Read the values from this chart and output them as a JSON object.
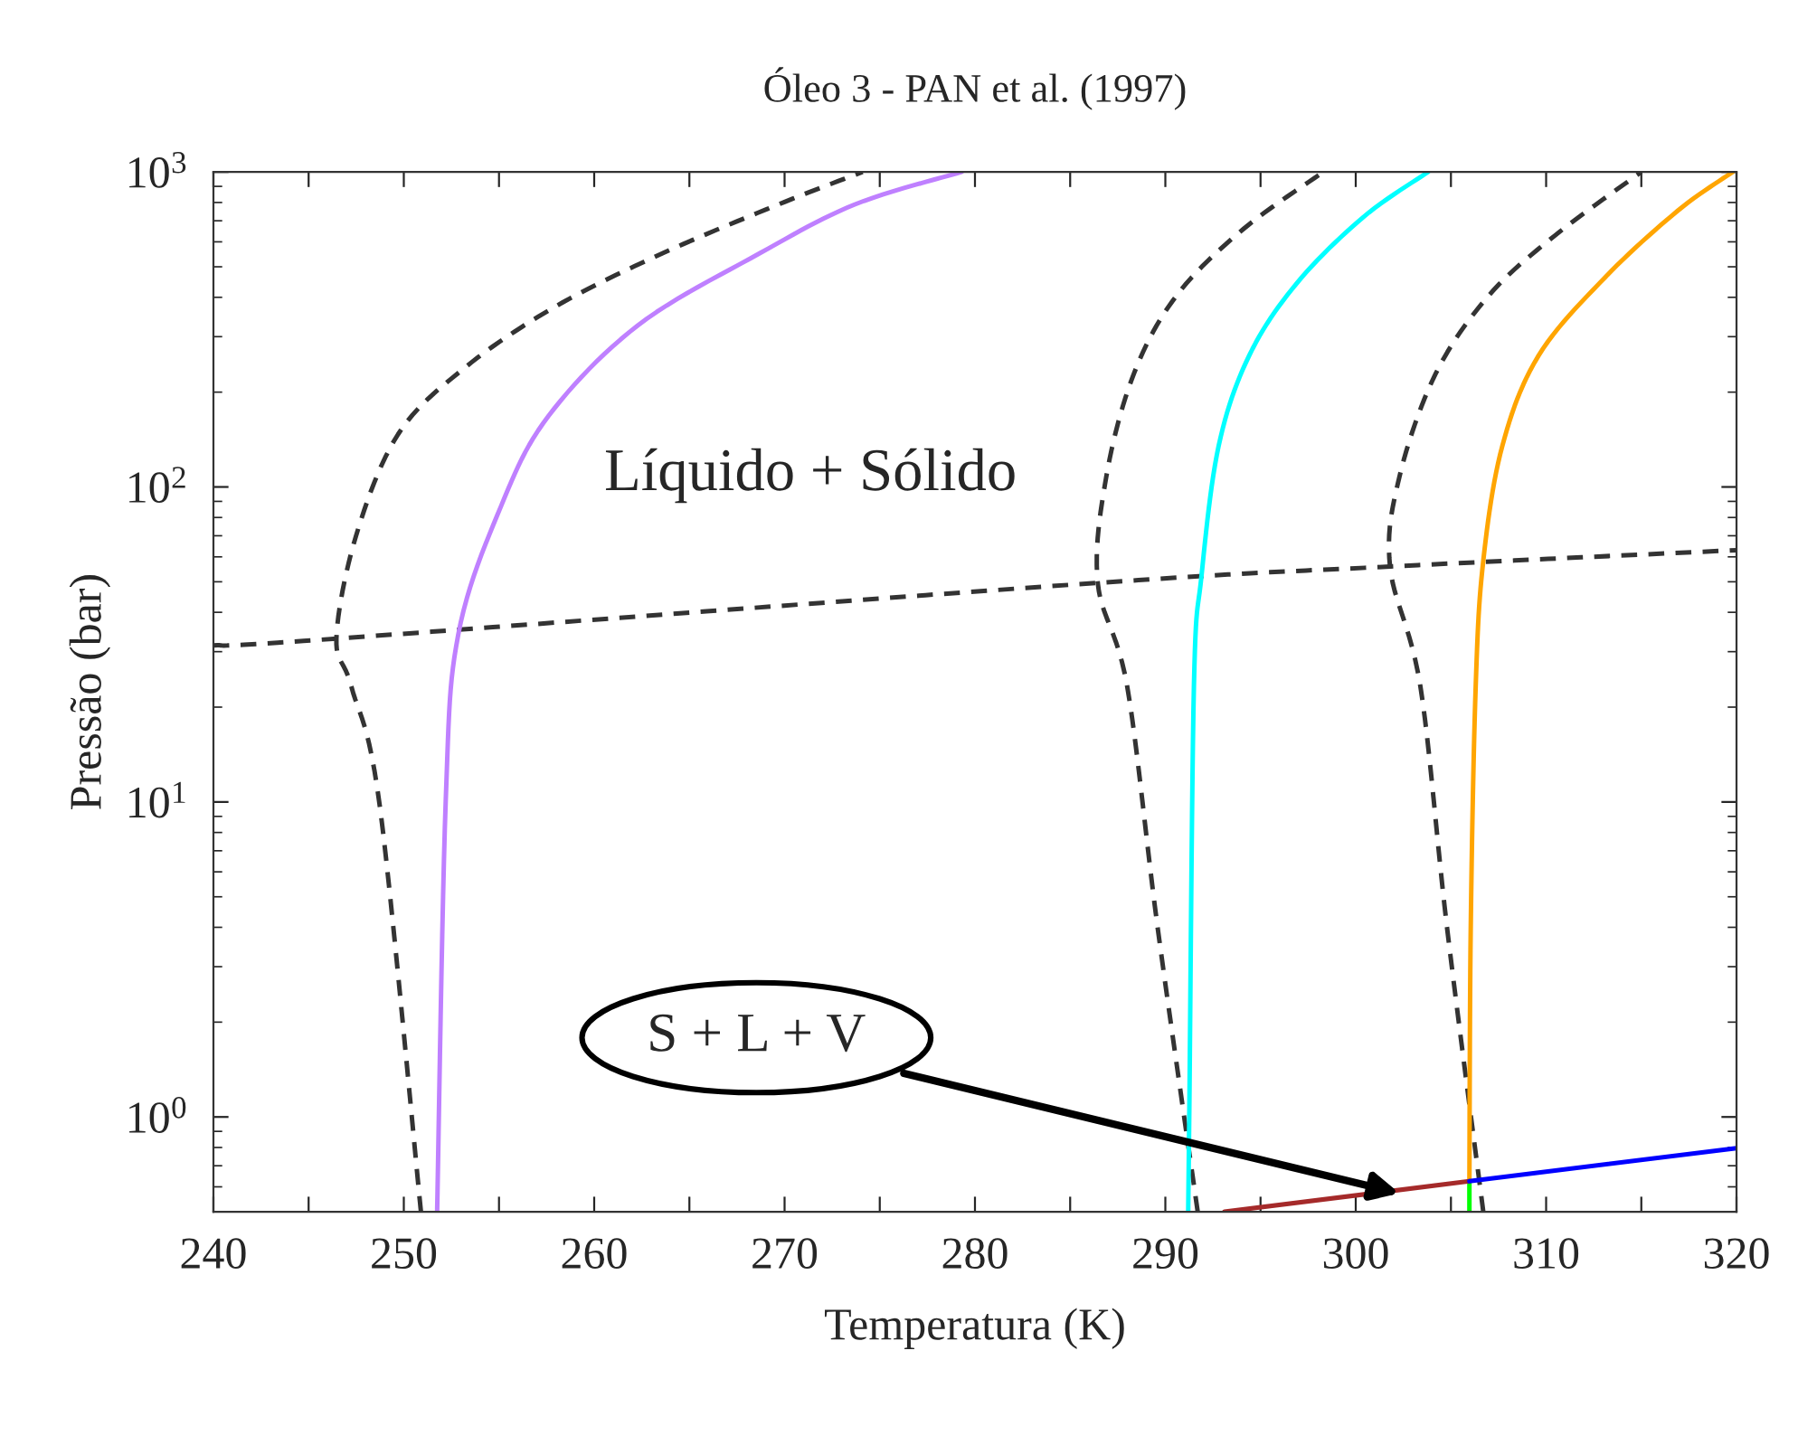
{
  "chart_data": {
    "type": "line",
    "title": "Óleo 3 - PAN et al. (1997)",
    "xlabel": "Temperatura (K)",
    "ylabel": "Pressão (bar)",
    "log": "y",
    "xlim": [
      240,
      320
    ],
    "ylim": [
      0.5,
      1000
    ],
    "xticks": [
      240,
      {
        "value": 245,
        "label": null
      },
      250,
      {
        "value": 255,
        "label": null
      },
      260,
      {
        "value": 265,
        "label": null
      },
      270,
      {
        "value": 275,
        "label": null
      },
      280,
      {
        "value": 285,
        "label": null
      },
      290,
      {
        "value": 295,
        "label": null
      },
      300,
      {
        "value": 305,
        "label": null
      },
      310,
      {
        "value": 315,
        "label": null
      },
      320
    ],
    "yticks": [
      {
        "value": 1,
        "label": "10$^{0}$"
      },
      {
        "value": 10,
        "label": "10$^{1}$"
      },
      {
        "value": 100,
        "label": "10$^{2}$"
      },
      {
        "value": 1000,
        "label": "10$^{3}$"
      }
    ],
    "annotations": [
      "Líquido + Sólido",
      {
        "text": "S + L + V",
        "x": 302.3,
        "y": 0.572
      }
    ],
    "series": [
      {
        "color": "#333333",
        "line_style": "dashed",
        "x": [
          240,
          246.46,
          286.45,
          301.8,
          320
        ],
        "values": [
          31.4,
          33.0,
          49.6,
          55.9,
          63
        ]
      },
      {
        "color": "#333333",
        "line_style": "dashed",
        "x": [
          250.9,
          248.75,
          247.25,
          246.46,
          247.48,
          249.7,
          253.2,
          257.9,
          263.6,
          270.0,
          274.1
        ],
        "values": [
          0.5,
          9.6,
          23.2,
          33.0,
          69.6,
          147,
          239,
          372,
          552,
          803,
          1000
        ]
      },
      {
        "color": "#333333",
        "line_style": "dashed",
        "x": [
          291.7,
          289.6,
          288.0,
          286.45,
          286.9,
          288.35,
          290.6,
          294.1,
          298.3
        ],
        "values": [
          0.5,
          3.97,
          23.2,
          49.6,
          108,
          229,
          406,
          659,
          1000
        ]
      },
      {
        "color": "#333333",
        "line_style": "dashed",
        "x": [
          306.7,
          304.8,
          303.4,
          301.8,
          302.3,
          304.2,
          307.0,
          310.5,
          315.0
        ],
        "values": [
          0.5,
          3.97,
          23.2,
          55.9,
          108,
          229,
          406,
          631,
          1000
        ]
      },
      {
        "color": "#bf80ff",
        "line_style": "solid",
        "x": [
          251.75,
          252.2,
          252.86,
          255.1,
          257.6,
          262.3,
          268.7,
          273.7,
          279.3
        ],
        "values": [
          0.5,
          10,
          34,
          86.7,
          168,
          326,
          552,
          789,
          1000
        ]
      },
      {
        "color": "#00ffff",
        "line_style": "solid",
        "x": [
          291.2,
          291.26,
          291.5,
          291.9,
          292.8,
          294.4,
          296.9,
          300.4,
          303.8
        ],
        "values": [
          0.5,
          1.06,
          23.2,
          52.3,
          135,
          261,
          443,
          719,
          1000
        ]
      },
      {
        "color": "#ffa500",
        "line_style": "solid",
        "x": [
          305.97,
          306.04,
          306.3,
          306.7,
          307.7,
          309.6,
          313.1,
          316.9,
          319.8
        ],
        "values": [
          0.625,
          3.97,
          23.2,
          58.4,
          135,
          261,
          463,
          752,
          1000
        ]
      },
      {
        "color": "#00ff00",
        "line_style": "solid",
        "x": [
          305.97,
          305.97
        ],
        "values": [
          0.5,
          0.625
        ]
      },
      {
        "color": "#a52a2a",
        "line_style": "solid",
        "x": [
          293.1,
          305.97
        ],
        "values": [
          0.5,
          0.625
        ]
      },
      {
        "color": "#0000ff",
        "line_style": "solid",
        "x": [
          305.97,
          320
        ],
        "values": [
          0.625,
          0.796
        ]
      }
    ]
  }
}
